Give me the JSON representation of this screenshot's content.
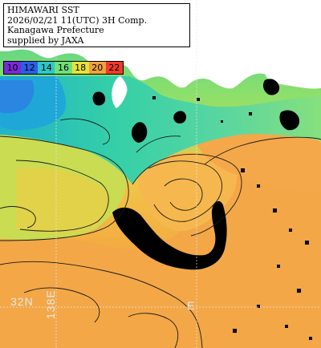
{
  "title": {
    "line1": "HIMAWARI SST",
    "line2": "2026/02/21 11(UTC) 3H Comp.",
    "line3": "Kanagawa Prefecture",
    "line4": "supplied by JAXA"
  },
  "colorbar": [
    {
      "label": "10",
      "color": "#7a2ad6"
    },
    {
      "label": "12",
      "color": "#2a5ee8"
    },
    {
      "label": "14",
      "color": "#2ec6c6"
    },
    {
      "label": "16",
      "color": "#6fe07a"
    },
    {
      "label": "18",
      "color": "#e6e23a"
    },
    {
      "label": "20",
      "color": "#f0a040"
    },
    {
      "label": "22",
      "color": "#f03a2a"
    }
  ],
  "grid_labels": {
    "latitude": "32N",
    "longitude": "138E",
    "longitude_tick": "E"
  },
  "colors": {
    "land": "#ffffff",
    "cloud_missing": "#000000",
    "contour": "#1a1a1a"
  }
}
